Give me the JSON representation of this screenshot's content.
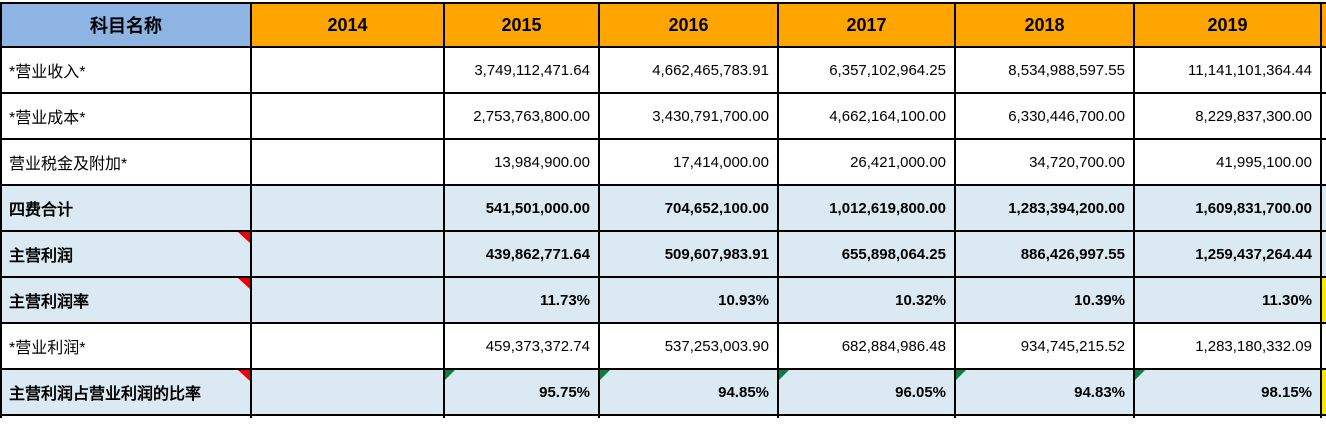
{
  "colors": {
    "subject_header_bg": "#8DB4E2",
    "year_header_bg": "#FFA500",
    "highlight_row_bg": "#DAE9F2",
    "partial_col_yellow": "#FFE400",
    "comment_marker_red": "#EE0000",
    "formula_marker_green": "#107C41",
    "grid_border": "#000000"
  },
  "header": {
    "subject": "科目名称",
    "years": [
      "2014",
      "2015",
      "2016",
      "2017",
      "2018",
      "2019"
    ]
  },
  "rows": [
    {
      "label": "*营业收入*",
      "bold": false,
      "highlight": false,
      "comment_marker": false,
      "values": [
        "",
        "3,749,112,471.64",
        "4,662,465,783.91",
        "6,357,102,964.25",
        "8,534,988,597.55",
        "11,141,101,364.44"
      ],
      "green_markers": [
        false,
        false,
        false,
        false,
        false,
        false
      ],
      "partial_bg": "white"
    },
    {
      "label": "*营业成本*",
      "bold": false,
      "highlight": false,
      "comment_marker": false,
      "values": [
        "",
        "2,753,763,800.00",
        "3,430,791,700.00",
        "4,662,164,100.00",
        "6,330,446,700.00",
        "8,229,837,300.00"
      ],
      "green_markers": [
        false,
        false,
        false,
        false,
        false,
        false
      ],
      "partial_bg": "white"
    },
    {
      "label": "营业税金及附加*",
      "bold": false,
      "highlight": false,
      "comment_marker": false,
      "values": [
        "",
        "13,984,900.00",
        "17,414,000.00",
        "26,421,000.00",
        "34,720,700.00",
        "41,995,100.00"
      ],
      "green_markers": [
        false,
        false,
        false,
        false,
        false,
        false
      ],
      "partial_bg": "white"
    },
    {
      "label": "四费合计",
      "bold": true,
      "highlight": true,
      "comment_marker": false,
      "values": [
        "",
        "541,501,000.00",
        "704,652,100.00",
        "1,012,619,800.00",
        "1,283,394,200.00",
        "1,609,831,700.00"
      ],
      "green_markers": [
        false,
        false,
        false,
        false,
        false,
        false
      ],
      "partial_bg": "highlight"
    },
    {
      "label": "主营利润",
      "bold": true,
      "highlight": true,
      "comment_marker": true,
      "values": [
        "",
        "439,862,771.64",
        "509,607,983.91",
        "655,898,064.25",
        "886,426,997.55",
        "1,259,437,264.44"
      ],
      "green_markers": [
        false,
        false,
        false,
        false,
        false,
        false
      ],
      "partial_bg": "highlight"
    },
    {
      "label": "主营利润率",
      "bold": true,
      "highlight": true,
      "comment_marker": true,
      "values": [
        "",
        "11.73%",
        "10.93%",
        "10.32%",
        "10.39%",
        "11.30%"
      ],
      "green_markers": [
        false,
        false,
        false,
        false,
        false,
        false
      ],
      "partial_bg": "yellow"
    },
    {
      "label": "*营业利润*",
      "bold": false,
      "highlight": false,
      "comment_marker": false,
      "values": [
        "",
        "459,373,372.74",
        "537,253,003.90",
        "682,884,986.48",
        "934,745,215.52",
        "1,283,180,332.09"
      ],
      "green_markers": [
        false,
        false,
        false,
        false,
        false,
        false
      ],
      "partial_bg": "white"
    },
    {
      "label": "主营利润占营业利润的比率",
      "bold": true,
      "highlight": true,
      "comment_marker": true,
      "values": [
        "",
        "95.75%",
        "94.85%",
        "96.05%",
        "94.83%",
        "98.15%"
      ],
      "green_markers": [
        false,
        true,
        true,
        true,
        true,
        true
      ],
      "partial_bg": "yellow"
    }
  ]
}
